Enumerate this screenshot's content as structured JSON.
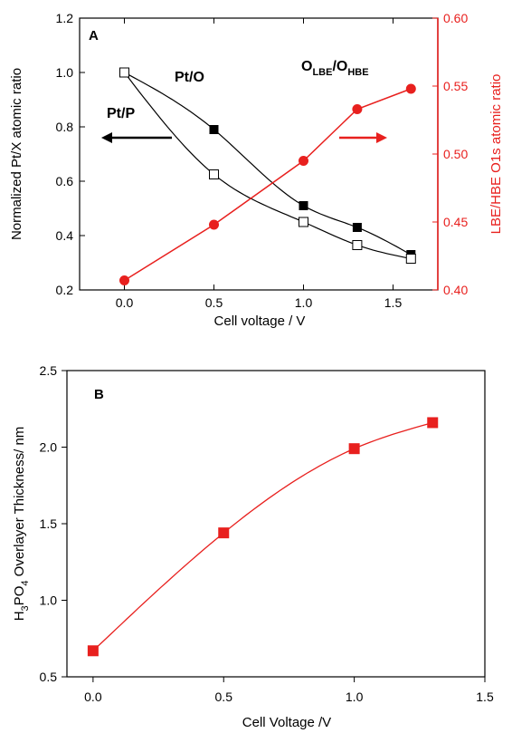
{
  "chart_data": [
    {
      "type": "scatter",
      "panel_label": "A",
      "xlabel": "Cell voltage / V",
      "ylabel": "Normalized Pt/X atomic ratio",
      "y2label": "LBE/HBE O1s atomic ratio",
      "xlim": [
        -0.25,
        1.75
      ],
      "ylim": [
        0.2,
        1.2
      ],
      "y2lim": [
        0.4,
        0.6
      ],
      "xticks": [
        "0.0",
        "0.5",
        "1.0",
        "1.5"
      ],
      "yticks": [
        "0.2",
        "0.4",
        "0.6",
        "0.8",
        "1.0",
        "1.2"
      ],
      "y2ticks": [
        "0.40",
        "0.45",
        "0.50",
        "0.55",
        "0.60"
      ],
      "colors": {
        "left": "#000000",
        "right": "#e8201e"
      },
      "annotations": {
        "pto": "Pt/O",
        "ptp": "Pt/P",
        "o_main": "O",
        "o_sub_lbe": "LBE",
        "o_slash": "/O",
        "o_sub_hbe": "HBE"
      },
      "series": [
        {
          "label": "Pt/O",
          "marker": "filled-square",
          "axis": "left",
          "x": [
            0.0,
            0.5,
            1.0,
            1.3,
            1.6
          ],
          "y": [
            1.0,
            0.79,
            0.51,
            0.43,
            0.33
          ]
        },
        {
          "label": "Pt/P",
          "marker": "open-square",
          "axis": "left",
          "x": [
            0.0,
            0.5,
            1.0,
            1.3,
            1.6
          ],
          "y": [
            1.0,
            0.625,
            0.45,
            0.365,
            0.315
          ]
        },
        {
          "label": "O_LBE/O_HBE",
          "marker": "filled-circle",
          "axis": "right",
          "x": [
            0.0,
            0.5,
            1.0,
            1.3,
            1.6
          ],
          "y": [
            0.407,
            0.448,
            0.495,
            0.533,
            0.548
          ]
        }
      ]
    },
    {
      "type": "scatter",
      "panel_label": "B",
      "xlabel": "Cell Voltage /V",
      "ylabel_parts": [
        "H",
        "3",
        "PO",
        "4",
        " Overlayer Thickness/ nm"
      ],
      "xlim": [
        -0.1,
        1.5
      ],
      "ylim": [
        0.5,
        2.5
      ],
      "xticks": [
        "0.0",
        "0.5",
        "1.0",
        "1.5"
      ],
      "yticks": [
        "0.5",
        "1.0",
        "1.5",
        "2.0",
        "2.5"
      ],
      "colors": {
        "series": "#e8201e"
      },
      "series": [
        {
          "marker": "filled-square",
          "x": [
            0.0,
            0.5,
            1.0,
            1.3
          ],
          "y": [
            0.67,
            1.44,
            1.99,
            2.16
          ]
        }
      ]
    }
  ]
}
